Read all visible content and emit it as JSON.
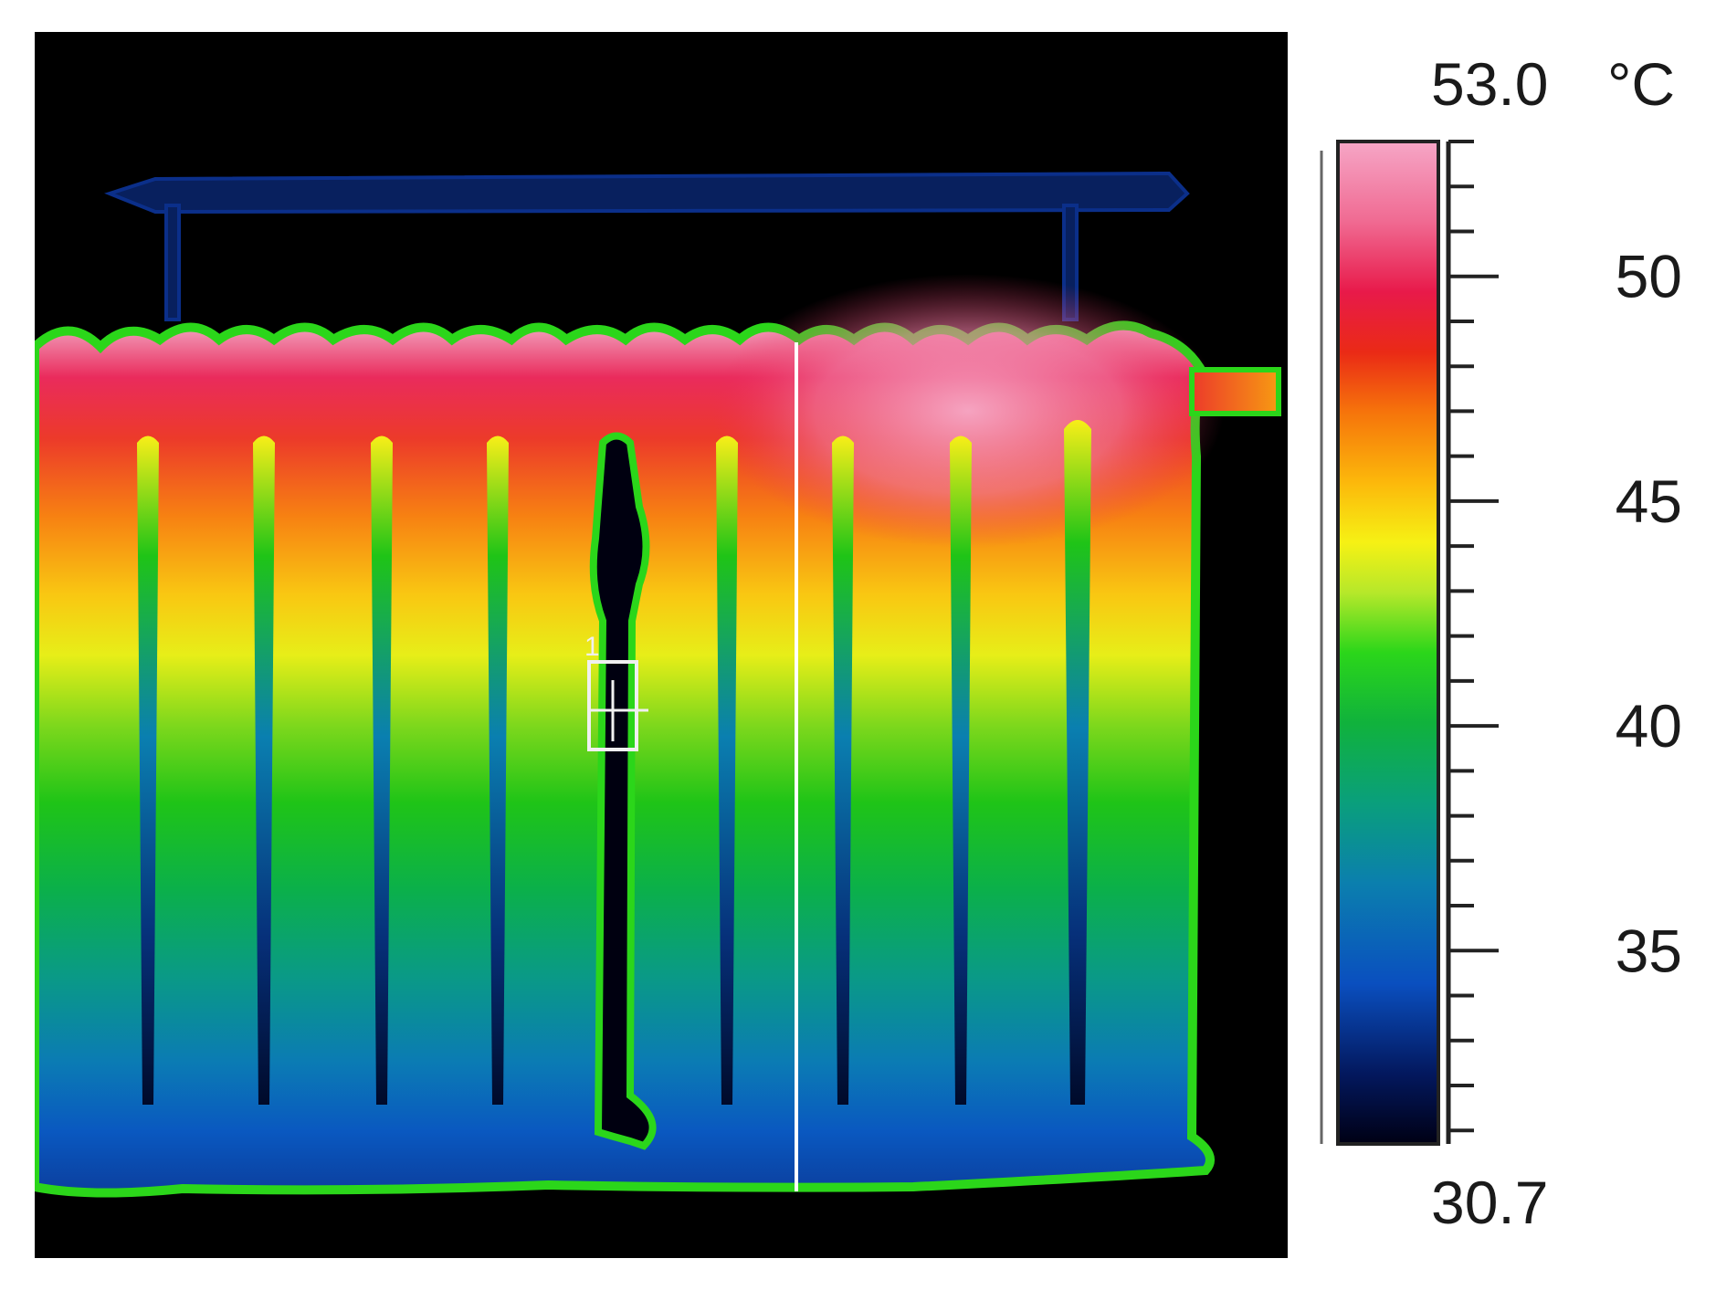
{
  "scale": {
    "max_label": "53.0",
    "min_label": "30.7",
    "unit": "°C",
    "max_value": 53.0,
    "min_value": 30.7,
    "major_ticks": [
      {
        "value": 50,
        "label": "50"
      },
      {
        "value": 45,
        "label": "45"
      },
      {
        "value": 40,
        "label": "40"
      },
      {
        "value": 35,
        "label": "35"
      }
    ],
    "minor_step": 1,
    "palette": [
      "#000018",
      "#001a6a",
      "#0a4fbf",
      "#0b7fae",
      "#0a9f7c",
      "#10b23c",
      "#2bd61a",
      "#b6e82a",
      "#f6f114",
      "#fcb80b",
      "#f6740b",
      "#ea2a16",
      "#e81a4a",
      "#f06a92",
      "#f6a6c6"
    ]
  },
  "marker": {
    "label": "1",
    "icon": "crosshair-box-icon"
  },
  "colors": {
    "background": "#000000",
    "hot": "#f293b3",
    "warm": "#f6c90f",
    "mid": "#24c414",
    "cool": "#0b5fb2",
    "cold": "#000018",
    "cursor_line": "#ffffff"
  }
}
